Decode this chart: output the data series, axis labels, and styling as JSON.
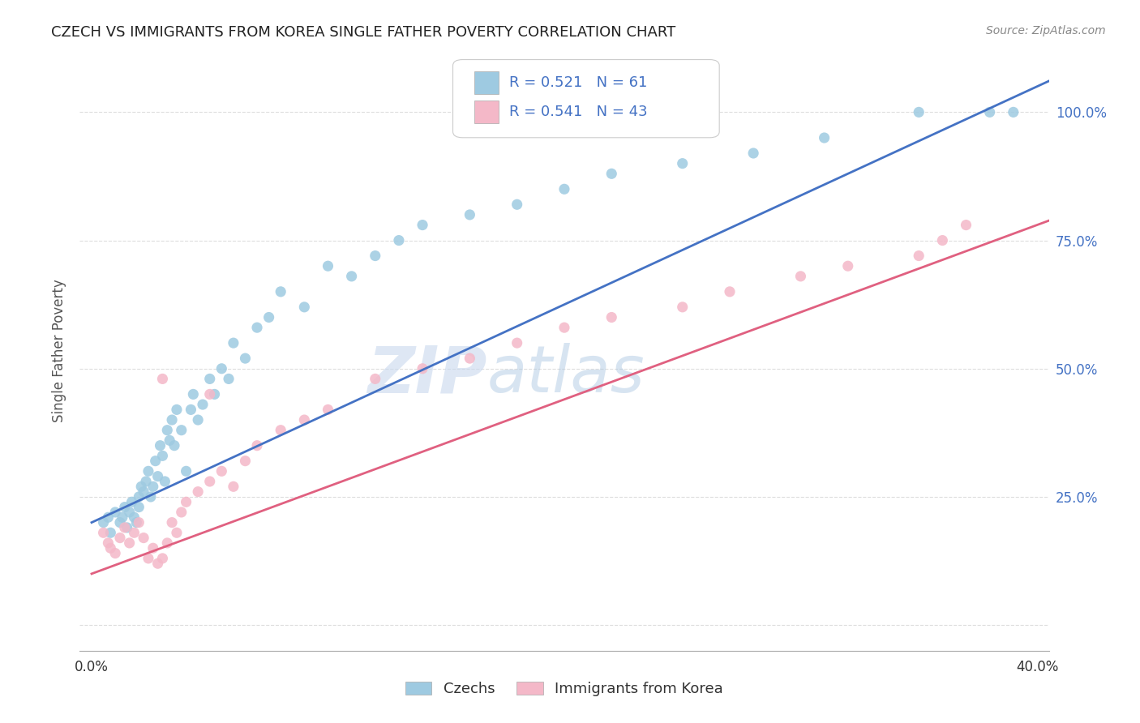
{
  "title": "CZECH VS IMMIGRANTS FROM KOREA SINGLE FATHER POVERTY CORRELATION CHART",
  "source": "Source: ZipAtlas.com",
  "ylabel": "Single Father Poverty",
  "czech_color": "#9ecae1",
  "czech_line_color": "#4472c4",
  "korea_color": "#f4b8c8",
  "korea_line_color": "#e06080",
  "legend_color": "#4472c4",
  "czech_R": 0.521,
  "czech_N": 61,
  "korea_R": 0.541,
  "korea_N": 43,
  "background_color": "#ffffff",
  "grid_color": "#dddddd",
  "czech_scatter_x": [
    0.005,
    0.007,
    0.008,
    0.01,
    0.012,
    0.013,
    0.014,
    0.015,
    0.016,
    0.017,
    0.018,
    0.019,
    0.02,
    0.02,
    0.021,
    0.022,
    0.023,
    0.024,
    0.025,
    0.026,
    0.027,
    0.028,
    0.029,
    0.03,
    0.031,
    0.032,
    0.033,
    0.034,
    0.035,
    0.036,
    0.038,
    0.04,
    0.042,
    0.043,
    0.045,
    0.047,
    0.05,
    0.052,
    0.055,
    0.058,
    0.06,
    0.065,
    0.07,
    0.075,
    0.08,
    0.09,
    0.1,
    0.11,
    0.12,
    0.13,
    0.14,
    0.16,
    0.18,
    0.2,
    0.22,
    0.25,
    0.28,
    0.31,
    0.35,
    0.38,
    0.39
  ],
  "czech_scatter_y": [
    0.2,
    0.21,
    0.18,
    0.22,
    0.2,
    0.21,
    0.23,
    0.19,
    0.22,
    0.24,
    0.21,
    0.2,
    0.25,
    0.23,
    0.27,
    0.26,
    0.28,
    0.3,
    0.25,
    0.27,
    0.32,
    0.29,
    0.35,
    0.33,
    0.28,
    0.38,
    0.36,
    0.4,
    0.35,
    0.42,
    0.38,
    0.3,
    0.42,
    0.45,
    0.4,
    0.43,
    0.48,
    0.45,
    0.5,
    0.48,
    0.55,
    0.52,
    0.58,
    0.6,
    0.65,
    0.62,
    0.7,
    0.68,
    0.72,
    0.75,
    0.78,
    0.8,
    0.82,
    0.85,
    0.88,
    0.9,
    0.92,
    0.95,
    1.0,
    1.0,
    1.0
  ],
  "korea_scatter_x": [
    0.005,
    0.007,
    0.008,
    0.01,
    0.012,
    0.014,
    0.016,
    0.018,
    0.02,
    0.022,
    0.024,
    0.026,
    0.028,
    0.03,
    0.032,
    0.034,
    0.036,
    0.038,
    0.04,
    0.045,
    0.05,
    0.055,
    0.06,
    0.065,
    0.07,
    0.08,
    0.09,
    0.1,
    0.12,
    0.14,
    0.16,
    0.18,
    0.2,
    0.22,
    0.25,
    0.27,
    0.3,
    0.32,
    0.35,
    0.36,
    0.37,
    0.03,
    0.05
  ],
  "korea_scatter_y": [
    0.18,
    0.16,
    0.15,
    0.14,
    0.17,
    0.19,
    0.16,
    0.18,
    0.2,
    0.17,
    0.13,
    0.15,
    0.12,
    0.13,
    0.16,
    0.2,
    0.18,
    0.22,
    0.24,
    0.26,
    0.28,
    0.3,
    0.27,
    0.32,
    0.35,
    0.38,
    0.4,
    0.42,
    0.48,
    0.5,
    0.52,
    0.55,
    0.58,
    0.6,
    0.62,
    0.65,
    0.68,
    0.7,
    0.72,
    0.75,
    0.78,
    0.48,
    0.45
  ]
}
